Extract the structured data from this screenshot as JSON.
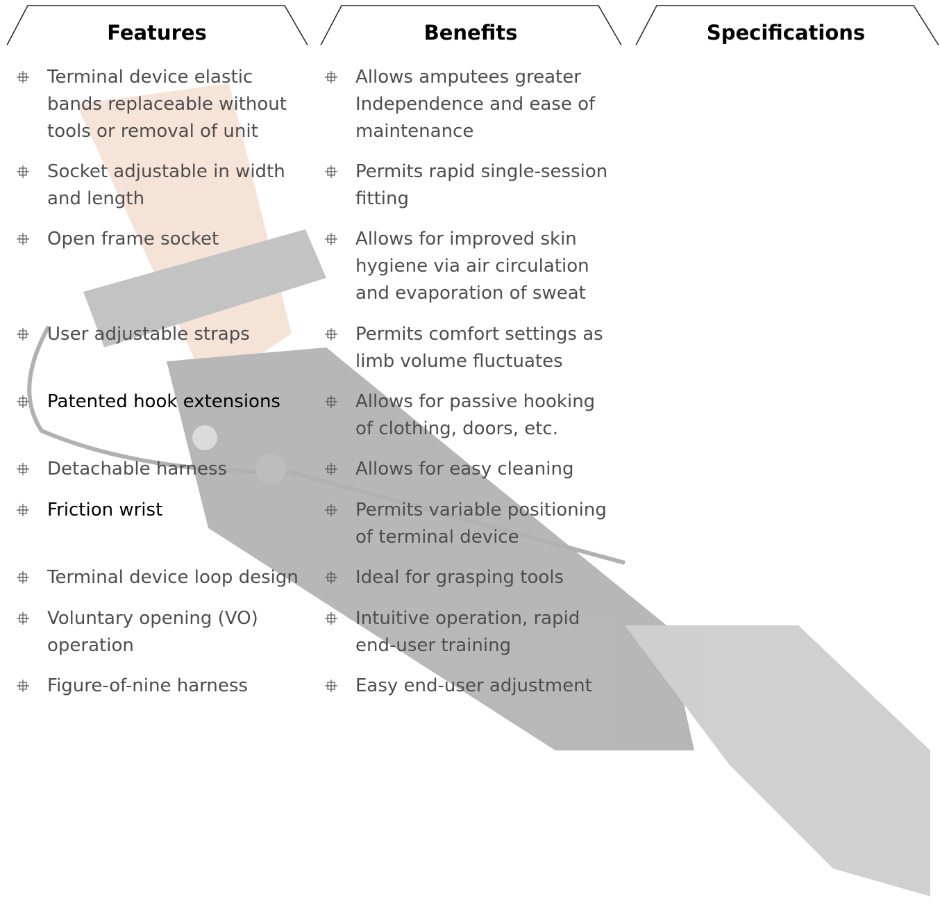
{
  "columns": [
    {
      "title": "Features",
      "items": [
        "Terminal device elastic bands replaceable without tools or removal of unit",
        "Socket adjustable in width and length",
        "Open frame socket",
        "User adjustable straps",
        "Patented hook extensions",
        "Detachable harness",
        "Friction wrist",
        "Terminal device loop design",
        "Voluntary opening (VO) operation",
        "Figure-of-nine harness"
      ]
    },
    {
      "title": "Benefits",
      "items": [
        "Allows amputees greater Independence and ease of maintenance",
        "Permits rapid single-session fitting",
        "Allows for improved skin hygiene via air circulation and evaporation of sweat",
        "Permits comfort settings as limb volume fluctuates",
        "Allows for passive hooking of clothing, doors, etc.",
        "Allows for easy cleaning",
        "Permits variable positioning of terminal device",
        "Ideal for grasping tools",
        "Intuitive operation, rapid end-user training",
        "Easy end-user adjustment"
      ]
    },
    {
      "title": "Specifications"
    }
  ]
}
